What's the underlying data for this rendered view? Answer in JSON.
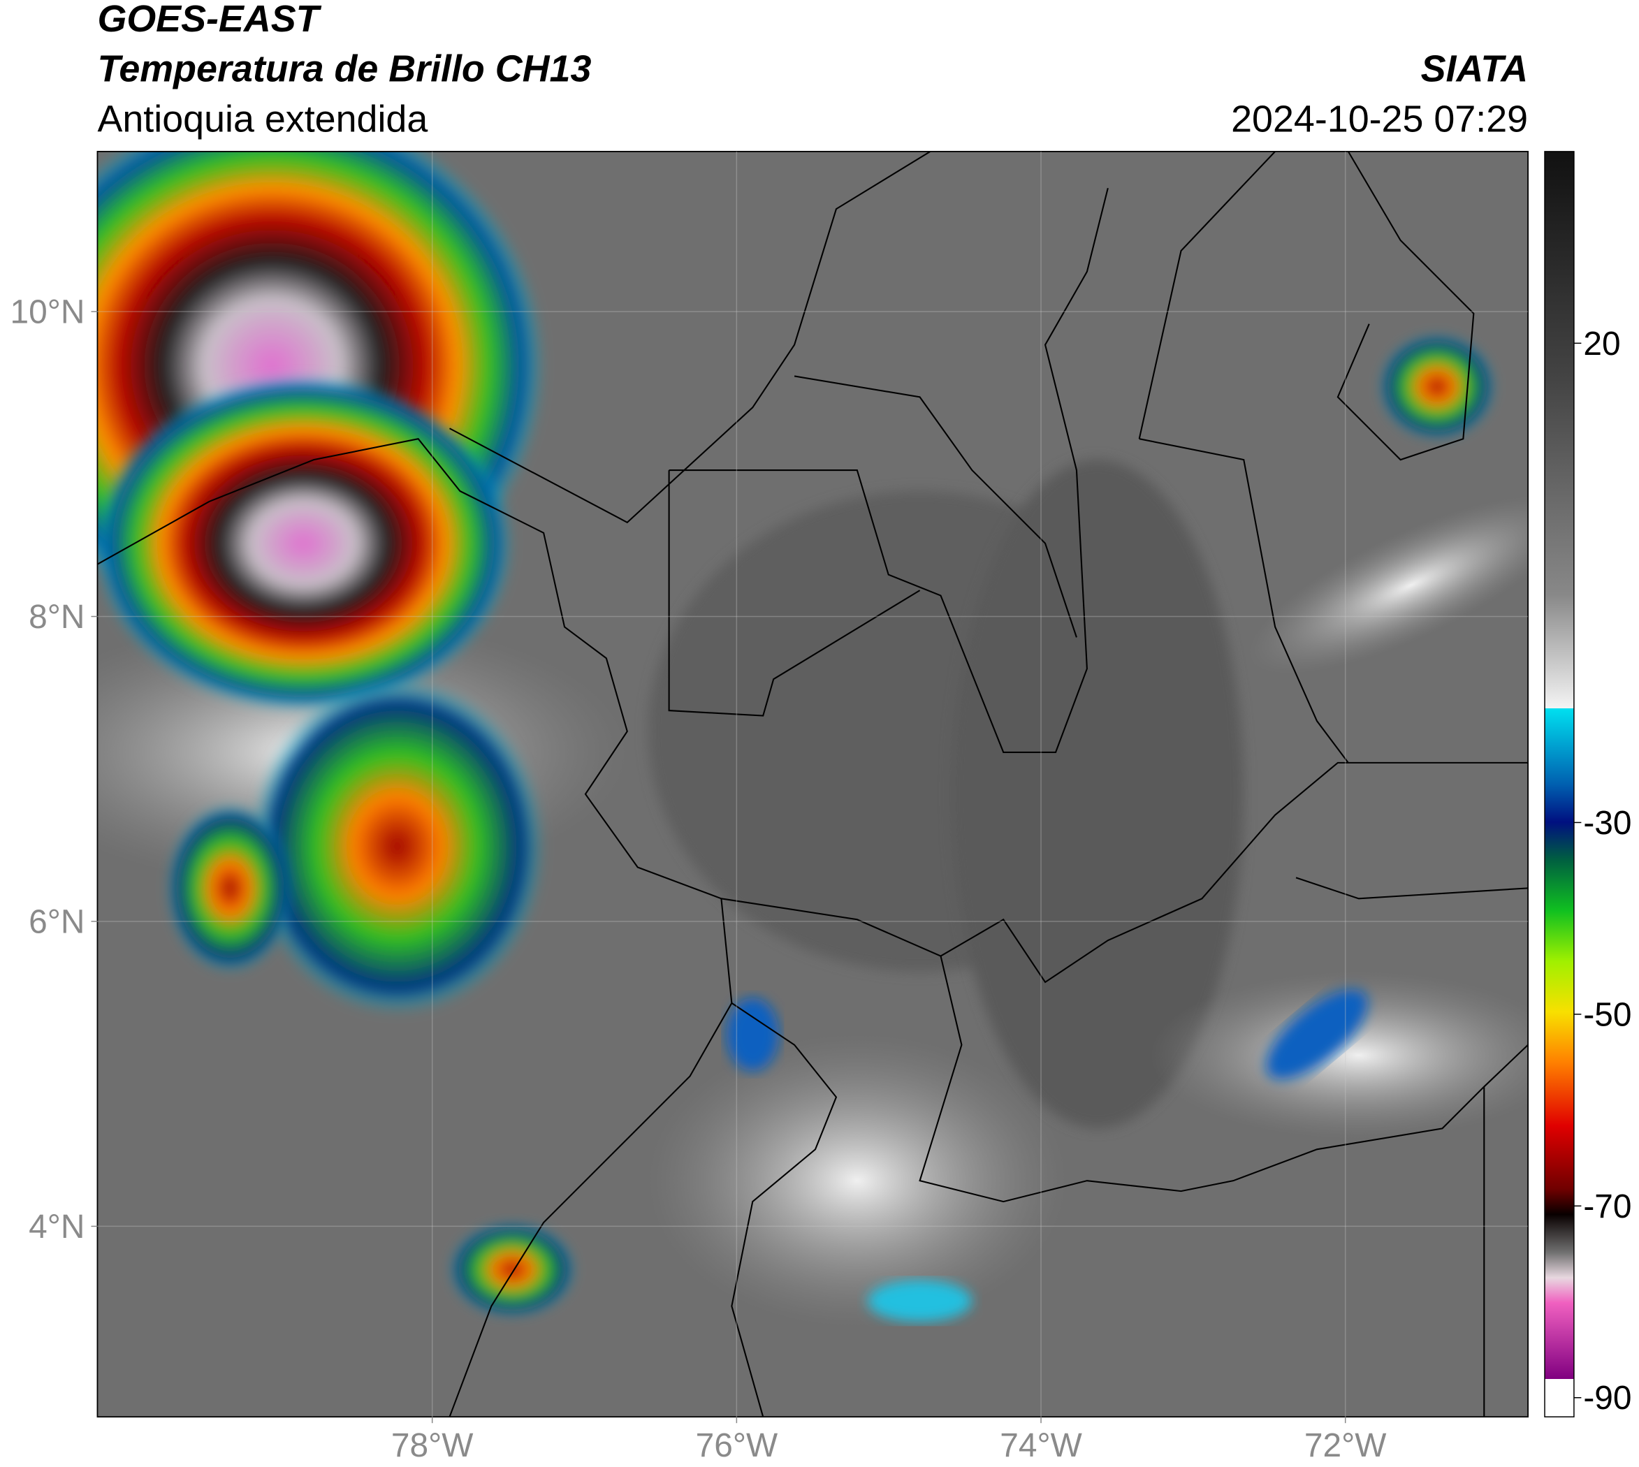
{
  "chart_data": {
    "type": "map",
    "title": "GOES-EAST",
    "subtitle": "Temperatura de Brillo CH13",
    "region": "Antioquia extendida",
    "source": "SIATA",
    "timestamp": "2024-10-25 07:29",
    "xlim": [
      -80.2,
      -70.8
    ],
    "ylim": [
      2.75,
      11.05
    ],
    "xticks": [
      {
        "value": -78,
        "label": "78°W"
      },
      {
        "value": -76,
        "label": "76°W"
      },
      {
        "value": -74,
        "label": "74°W"
      },
      {
        "value": -72,
        "label": "72°W"
      }
    ],
    "yticks": [
      {
        "value": 4,
        "label": "4°N"
      },
      {
        "value": 6,
        "label": "6°N"
      },
      {
        "value": 8,
        "label": "8°N"
      },
      {
        "value": 10,
        "label": "10°N"
      }
    ],
    "colorbar": {
      "lim": [
        -92,
        40
      ],
      "ticks": [
        -90,
        -70,
        -50,
        -30,
        20
      ]
    }
  }
}
